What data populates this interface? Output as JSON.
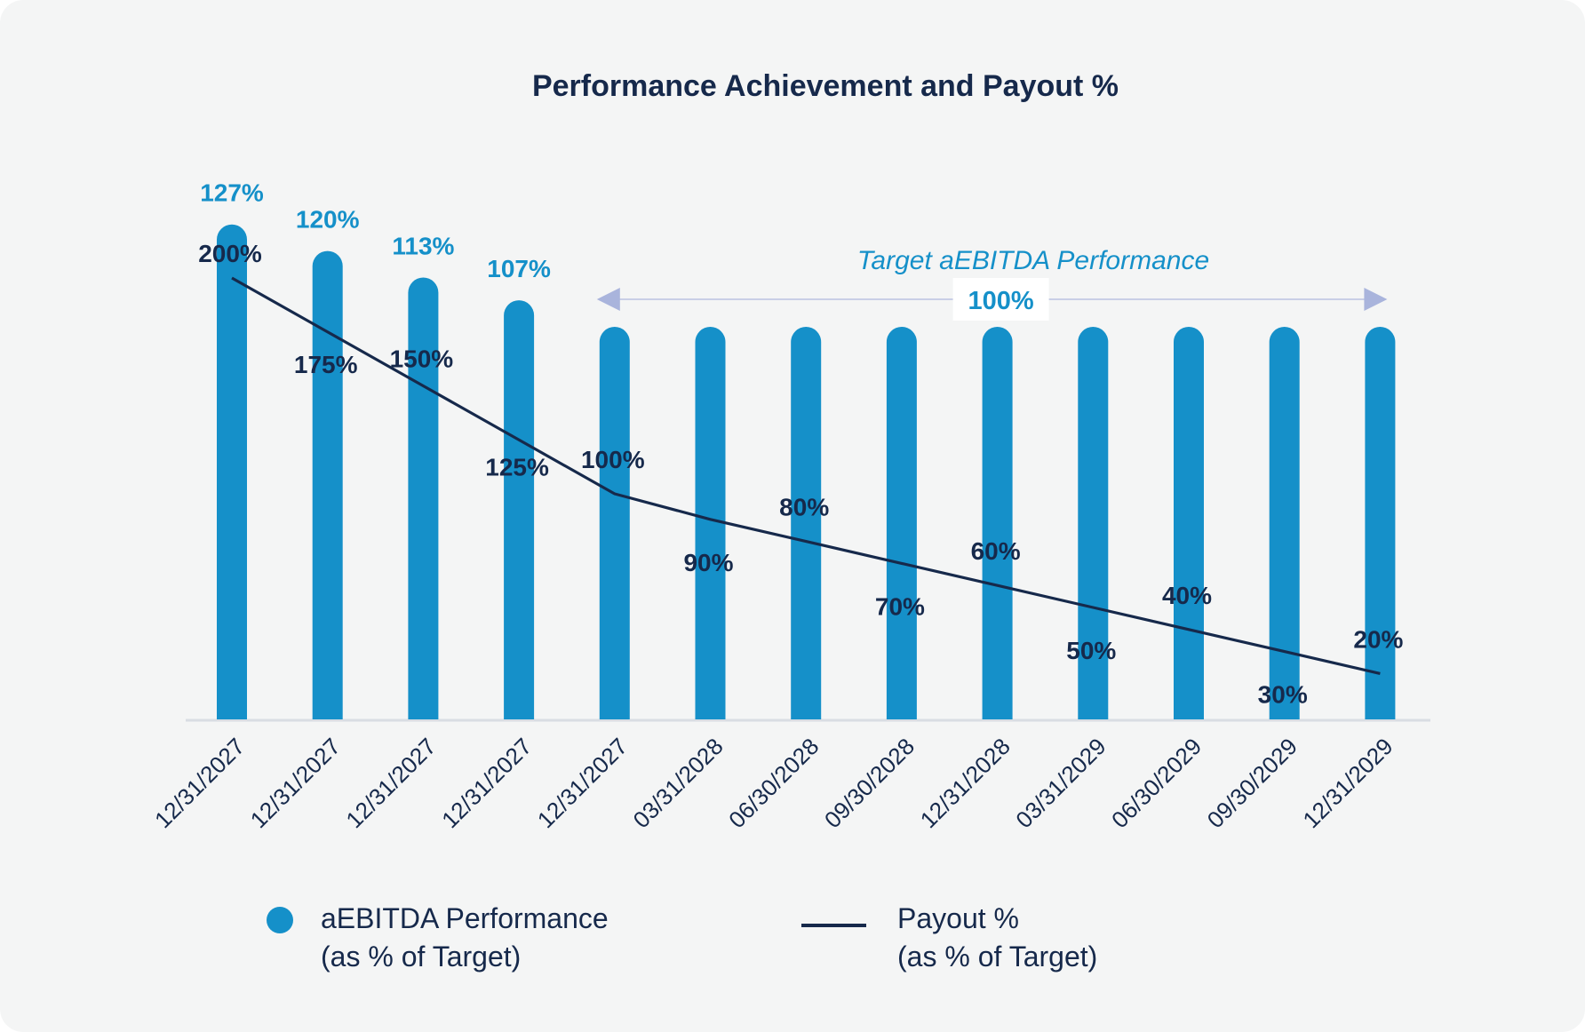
{
  "chart_data": {
    "type": "bar",
    "title": "Performance Achievement and Payout %",
    "categories": [
      "12/31/2027",
      "12/31/2027",
      "12/31/2027",
      "12/31/2027",
      "12/31/2027",
      "03/31/2028",
      "06/30/2028",
      "09/30/2028",
      "12/31/2028",
      "03/31/2029",
      "06/30/2029",
      "09/30/2029",
      "12/31/2029"
    ],
    "series": [
      {
        "name": "aEBITDA Performance (as % of Target)",
        "type": "bar",
        "color": "#1590c9",
        "values": [
          127,
          120,
          113,
          107,
          100,
          100,
          100,
          100,
          100,
          100,
          100,
          100,
          100
        ],
        "labels": [
          "127%",
          "120%",
          "113%",
          "107%",
          "",
          "",
          "",
          "",
          "",
          "",
          "",
          "",
          ""
        ]
      },
      {
        "name": "Payout % (as % of Target)",
        "type": "line",
        "color": "#16294b",
        "values": [
          200,
          175,
          150,
          125,
          100,
          90,
          80,
          70,
          60,
          50,
          40,
          30,
          20
        ],
        "labels": [
          "200%",
          "175%",
          "150%",
          "125%",
          "100%",
          "90%",
          "80%",
          "70%",
          "60%",
          "50%",
          "40%",
          "30%",
          "20%"
        ]
      }
    ],
    "annotation": {
      "text": "Target aEBITDA Performance",
      "value": "100%",
      "range": [
        "12/31/2027",
        "12/31/2029"
      ]
    },
    "legend": {
      "placement": "bottom",
      "items": [
        {
          "line1": "aEBITDA Performance",
          "line2": "(as % of Target)",
          "marker": "circle",
          "color": "#1590c9"
        },
        {
          "line1": "Payout %",
          "line2": "(as % of Target)",
          "marker": "line",
          "color": "#16294b"
        }
      ]
    },
    "grid": false
  }
}
